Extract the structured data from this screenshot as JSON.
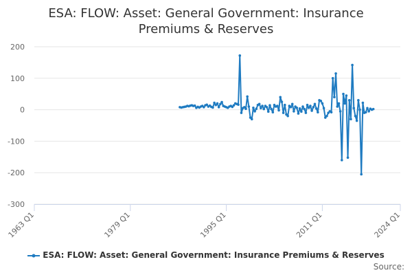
{
  "chart_data": {
    "type": "line",
    "title": "ESA: FLOW: Asset: General Government: Insurance Premiums & Reserves",
    "title_lines": [
      "ESA: FLOW: Asset: General Government: Insurance",
      "Premiums & Reserves"
    ],
    "xlabel": "",
    "ylabel": "",
    "ylim": [
      -300,
      200
    ],
    "yticks": [
      200,
      100,
      0,
      -100,
      -200,
      -300
    ],
    "x_tick_labels": [
      "1963 Q1",
      "1979 Q1",
      "1995 Q1",
      "2011 Q1",
      "2024 Q1"
    ],
    "x_range": [
      "1963 Q1",
      "2024 Q1"
    ],
    "grid": "horizontal",
    "legend_position": "bottom",
    "series": [
      {
        "name": "ESA: FLOW: Asset: General Government: Insurance Premiums & Reserves",
        "color": "#1f7bc1",
        "points": [
          [
            "1987 Q2",
            8
          ],
          [
            "1987 Q3",
            7
          ],
          [
            "1987 Q4",
            8
          ],
          [
            "1988 Q1",
            9
          ],
          [
            "1988 Q2",
            10
          ],
          [
            "1988 Q3",
            12
          ],
          [
            "1988 Q4",
            11
          ],
          [
            "1989 Q1",
            13
          ],
          [
            "1989 Q2",
            14
          ],
          [
            "1989 Q3",
            12
          ],
          [
            "1989 Q4",
            13
          ],
          [
            "1990 Q1",
            6
          ],
          [
            "1990 Q2",
            9
          ],
          [
            "1990 Q3",
            7
          ],
          [
            "1990 Q4",
            10
          ],
          [
            "1991 Q1",
            12
          ],
          [
            "1991 Q2",
            8
          ],
          [
            "1991 Q3",
            14
          ],
          [
            "1991 Q4",
            16
          ],
          [
            "1992 Q1",
            10
          ],
          [
            "1992 Q2",
            13
          ],
          [
            "1992 Q3",
            9
          ],
          [
            "1992 Q4",
            7
          ],
          [
            "1993 Q1",
            22
          ],
          [
            "1993 Q2",
            15
          ],
          [
            "1993 Q3",
            20
          ],
          [
            "1993 Q4",
            8
          ],
          [
            "1994 Q1",
            18
          ],
          [
            "1994 Q2",
            24
          ],
          [
            "1994 Q3",
            12
          ],
          [
            "1994 Q4",
            10
          ],
          [
            "1995 Q1",
            8
          ],
          [
            "1995 Q2",
            6
          ],
          [
            "1995 Q3",
            10
          ],
          [
            "1995 Q4",
            12
          ],
          [
            "1996 Q1",
            9
          ],
          [
            "1996 Q2",
            14
          ],
          [
            "1996 Q3",
            20
          ],
          [
            "1996 Q4",
            18
          ],
          [
            "1997 Q1",
            16
          ],
          [
            "1997 Q2",
            172
          ],
          [
            "1997 Q3",
            -10
          ],
          [
            "1997 Q4",
            5
          ],
          [
            "1998 Q1",
            8
          ],
          [
            "1998 Q2",
            3
          ],
          [
            "1998 Q3",
            42
          ],
          [
            "1998 Q4",
            10
          ],
          [
            "1999 Q1",
            -25
          ],
          [
            "1999 Q2",
            -30
          ],
          [
            "1999 Q3",
            6
          ],
          [
            "1999 Q4",
            -5
          ],
          [
            "2000 Q1",
            3
          ],
          [
            "2000 Q2",
            15
          ],
          [
            "2000 Q3",
            18
          ],
          [
            "2000 Q4",
            5
          ],
          [
            "2001 Q1",
            12
          ],
          [
            "2001 Q2",
            2
          ],
          [
            "2001 Q3",
            12
          ],
          [
            "2001 Q4",
            8
          ],
          [
            "2002 Q1",
            -6
          ],
          [
            "2002 Q2",
            14
          ],
          [
            "2002 Q3",
            2
          ],
          [
            "2002 Q4",
            -8
          ],
          [
            "2003 Q1",
            15
          ],
          [
            "2003 Q2",
            10
          ],
          [
            "2003 Q3",
            12
          ],
          [
            "2003 Q4",
            -2
          ],
          [
            "2004 Q1",
            40
          ],
          [
            "2004 Q2",
            25
          ],
          [
            "2004 Q3",
            -10
          ],
          [
            "2004 Q4",
            15
          ],
          [
            "2005 Q1",
            -15
          ],
          [
            "2005 Q2",
            -20
          ],
          [
            "2005 Q3",
            12
          ],
          [
            "2005 Q4",
            8
          ],
          [
            "2006 Q1",
            18
          ],
          [
            "2006 Q2",
            -5
          ],
          [
            "2006 Q3",
            10
          ],
          [
            "2006 Q4",
            6
          ],
          [
            "2007 Q1",
            -12
          ],
          [
            "2007 Q2",
            4
          ],
          [
            "2007 Q3",
            -6
          ],
          [
            "2007 Q4",
            10
          ],
          [
            "2008 Q1",
            2
          ],
          [
            "2008 Q2",
            -10
          ],
          [
            "2008 Q3",
            15
          ],
          [
            "2008 Q4",
            6
          ],
          [
            "2009 Q1",
            12
          ],
          [
            "2009 Q2",
            -3
          ],
          [
            "2009 Q3",
            8
          ],
          [
            "2009 Q4",
            18
          ],
          [
            "2010 Q1",
            4
          ],
          [
            "2010 Q2",
            -8
          ],
          [
            "2010 Q3",
            30
          ],
          [
            "2010 Q4",
            28
          ],
          [
            "2011 Q1",
            20
          ],
          [
            "2011 Q2",
            5
          ],
          [
            "2011 Q3",
            -25
          ],
          [
            "2011 Q4",
            -20
          ],
          [
            "2012 Q1",
            -10
          ],
          [
            "2012 Q2",
            -5
          ],
          [
            "2012 Q3",
            -8
          ],
          [
            "2012 Q4",
            100
          ],
          [
            "2013 Q1",
            40
          ],
          [
            "2013 Q2",
            115
          ],
          [
            "2013 Q3",
            10
          ],
          [
            "2013 Q4",
            20
          ],
          [
            "2014 Q1",
            -5
          ],
          [
            "2014 Q2",
            -160
          ],
          [
            "2014 Q3",
            50
          ],
          [
            "2014 Q4",
            20
          ],
          [
            "2015 Q1",
            45
          ],
          [
            "2015 Q2",
            -152
          ],
          [
            "2015 Q3",
            30
          ],
          [
            "2015 Q4",
            -30
          ],
          [
            "2016 Q1",
            142
          ],
          [
            "2016 Q2",
            5
          ],
          [
            "2016 Q3",
            -20
          ],
          [
            "2016 Q4",
            -35
          ],
          [
            "2017 Q1",
            30
          ],
          [
            "2017 Q2",
            0
          ],
          [
            "2017 Q3",
            -205
          ],
          [
            "2017 Q4",
            22
          ],
          [
            "2018 Q1",
            -10
          ],
          [
            "2018 Q2",
            -8
          ],
          [
            "2018 Q3",
            5
          ],
          [
            "2018 Q4",
            -5
          ],
          [
            "2019 Q1",
            3
          ],
          [
            "2019 Q2",
            0
          ],
          [
            "2019 Q3",
            2
          ]
        ]
      }
    ]
  },
  "source_label": "Source:"
}
